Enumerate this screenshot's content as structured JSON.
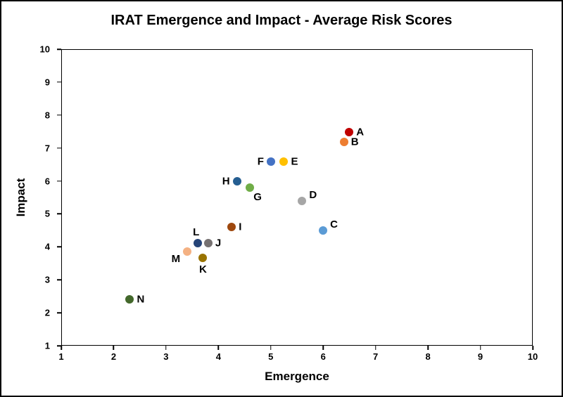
{
  "chart_data": {
    "type": "scatter",
    "title": "IRAT Emergence and Impact - Average Risk Scores",
    "xlabel": "Emergence",
    "ylabel": "Impact",
    "xlim": [
      1,
      10
    ],
    "ylim": [
      1,
      10
    ],
    "xticks": [
      1,
      2,
      3,
      4,
      5,
      6,
      7,
      8,
      9,
      10
    ],
    "yticks": [
      1,
      2,
      3,
      4,
      5,
      6,
      7,
      8,
      9,
      10
    ],
    "grid": false,
    "legend": "none",
    "points": [
      {
        "label": "A",
        "x": 6.5,
        "y": 7.5,
        "color": "#C00000",
        "label_pos": "right"
      },
      {
        "label": "B",
        "x": 6.4,
        "y": 7.2,
        "color": "#ED7D31",
        "label_pos": "right"
      },
      {
        "label": "C",
        "x": 6.0,
        "y": 4.5,
        "color": "#5B9BD5",
        "label_pos": "right-up"
      },
      {
        "label": "D",
        "x": 5.6,
        "y": 5.4,
        "color": "#A6A6A6",
        "label_pos": "right-up"
      },
      {
        "label": "E",
        "x": 5.25,
        "y": 6.6,
        "color": "#FFC000",
        "label_pos": "right"
      },
      {
        "label": "F",
        "x": 5.0,
        "y": 6.6,
        "color": "#4472C4",
        "label_pos": "left"
      },
      {
        "label": "G",
        "x": 4.6,
        "y": 5.8,
        "color": "#70AD47",
        "label_pos": "below-right"
      },
      {
        "label": "H",
        "x": 4.35,
        "y": 6.0,
        "color": "#255E91",
        "label_pos": "left"
      },
      {
        "label": "I",
        "x": 4.25,
        "y": 4.6,
        "color": "#9E480E",
        "label_pos": "right"
      },
      {
        "label": "J",
        "x": 3.8,
        "y": 4.1,
        "color": "#767171",
        "label_pos": "right"
      },
      {
        "label": "K",
        "x": 3.7,
        "y": 3.65,
        "color": "#997300",
        "label_pos": "below"
      },
      {
        "label": "L",
        "x": 3.6,
        "y": 4.1,
        "color": "#264478",
        "label_pos": "above-left"
      },
      {
        "label": "M",
        "x": 3.4,
        "y": 3.85,
        "color": "#F4B183",
        "label_pos": "left-down"
      },
      {
        "label": "N",
        "x": 2.3,
        "y": 2.4,
        "color": "#43682B",
        "label_pos": "right"
      }
    ]
  }
}
